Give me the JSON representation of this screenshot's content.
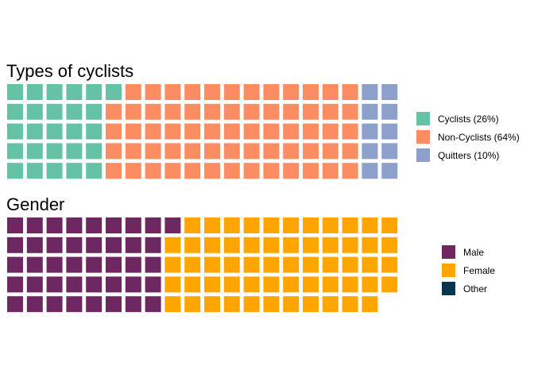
{
  "chart_data": [
    {
      "type": "waffle",
      "title": "Types of cyclists",
      "rows": 5,
      "series": [
        {
          "name": "Cyclists (26%)",
          "value": 26,
          "color": "#66C2A5"
        },
        {
          "name": "Non-Cyclists (64%)",
          "value": 64,
          "color": "#FC8D62"
        },
        {
          "name": "Quitters (10%)",
          "value": 10,
          "color": "#8DA0CB"
        }
      ],
      "legend_position": "right"
    },
    {
      "type": "waffle",
      "title": "Gender",
      "rows": 5,
      "series": [
        {
          "name": "Male",
          "value": 41,
          "color": "#6D2862"
        },
        {
          "name": "Female",
          "value": 58,
          "color": "#FFA500"
        },
        {
          "name": "Other",
          "value": 0,
          "color": "#09344E"
        }
      ],
      "legend_position": "right"
    }
  ]
}
